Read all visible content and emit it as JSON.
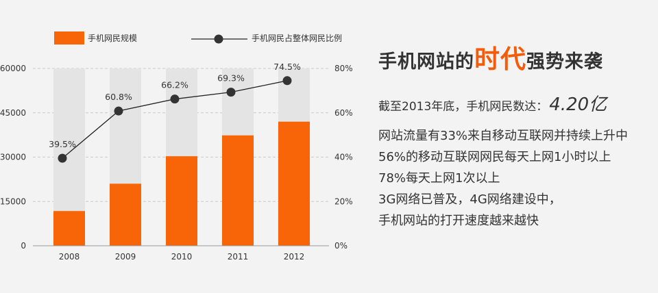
{
  "chart_data": {
    "type": "bar+line",
    "categories": [
      "2008",
      "2009",
      "2010",
      "2011",
      "2012"
    ],
    "series": [
      {
        "name": "手机网民规模",
        "type": "bar",
        "axis": "left",
        "values": [
          11760,
          21000,
          30300,
          37360,
          42000
        ],
        "color": "#f86408"
      },
      {
        "name": "手机网民占整体网民比例",
        "type": "line",
        "axis": "right",
        "values": [
          39.5,
          60.8,
          66.2,
          69.3,
          74.5
        ],
        "labels": [
          "39.5%",
          "60.8%",
          "66.2%",
          "69.3%",
          "74.5%"
        ],
        "color": "#222222"
      }
    ],
    "y_left": {
      "ticks": [
        "0",
        "15000",
        "30000",
        "45000",
        "60000"
      ],
      "ylim": [
        0,
        60000
      ]
    },
    "y_right": {
      "ticks": [
        "0%",
        "20%",
        "40%",
        "60%",
        "80%"
      ],
      "ylim": [
        0,
        80
      ]
    },
    "grid": true,
    "legend_position": "top"
  },
  "headline": {
    "part1": "手机网站的",
    "highlight": "时代",
    "part2": "强势来袭"
  },
  "stat": {
    "label": "截至2013年底，手机网民数达：",
    "value": "4.20亿"
  },
  "bullets": [
    "网站流量有33%来自移动互联网并持续上升中",
    "56%的移动互联网网民每天上网1小时以上",
    "78%每天上网1次以上",
    "3G网络已普及，4G网络建设中，",
    "手机网站的打开速度越来越快"
  ],
  "colors": {
    "accent": "#f25c0a",
    "bar": "#f86408",
    "track": "#e4e4e4",
    "grid": "#c8c8c8",
    "background": "#f3f3f3"
  }
}
